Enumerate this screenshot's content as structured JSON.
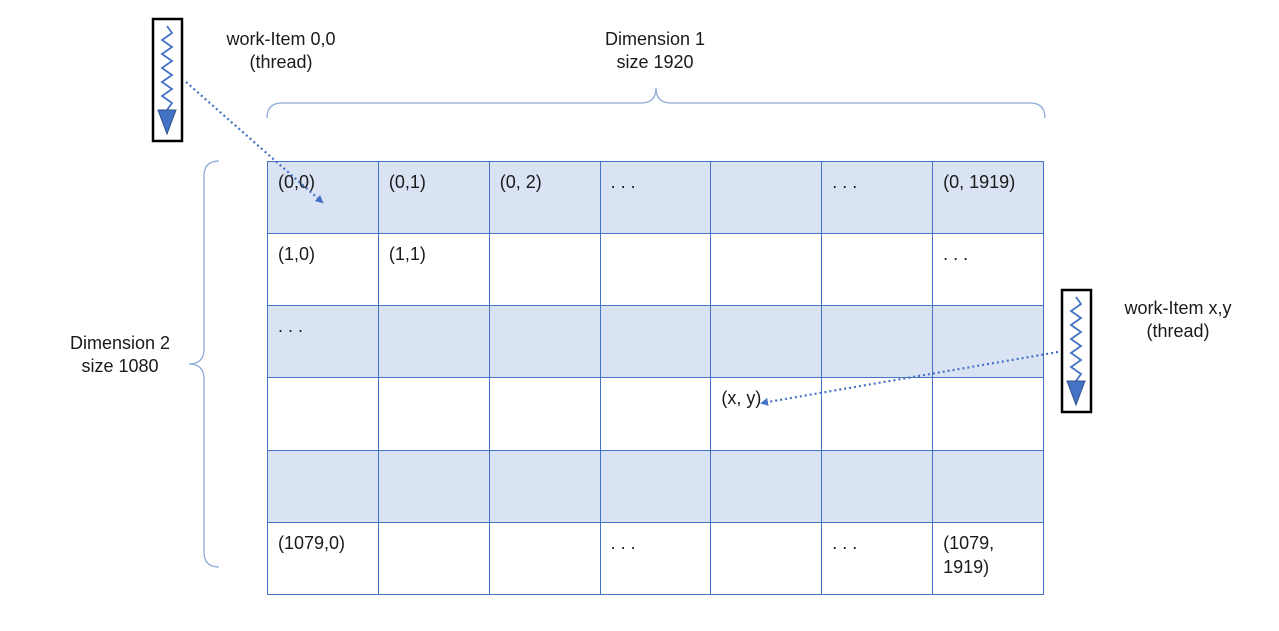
{
  "dimension1": {
    "line1": "Dimension 1",
    "line2": "size 1920"
  },
  "dimension2": {
    "line1": "Dimension 2",
    "line2": "size 1080"
  },
  "work_item_origin": {
    "line1": "work-Item 0,0",
    "line2": "(thread)",
    "icon": "thread-wave-arrow-icon"
  },
  "work_item_xy": {
    "line1": "work-Item x,y",
    "line2": "(thread)",
    "icon": "thread-wave-arrow-icon"
  },
  "colors": {
    "grid_line": "#4472c4",
    "shaded_row": "#dae3f3",
    "arrow": "#4472c4",
    "brace": "#8eaadb"
  },
  "grid": {
    "rows": [
      {
        "shaded": true,
        "cells": [
          "(0,0)",
          "(0,1)",
          "(0, 2)",
          ". . .",
          "",
          ". . .",
          "(0, 1919)"
        ]
      },
      {
        "shaded": false,
        "cells": [
          "(1,0)",
          "(1,1)",
          "",
          "",
          "",
          "",
          ". . ."
        ]
      },
      {
        "shaded": true,
        "cells": [
          ". . .",
          "",
          "",
          "",
          "",
          "",
          ""
        ]
      },
      {
        "shaded": false,
        "cells": [
          "",
          "",
          "",
          "",
          "(x, y)",
          "",
          ""
        ]
      },
      {
        "shaded": true,
        "cells": [
          "",
          "",
          "",
          "",
          "",
          "",
          ""
        ]
      },
      {
        "shaded": false,
        "cells": [
          "(1079,0)",
          "",
          "",
          ". . .",
          "",
          ". . .",
          "(1079,\n1919)"
        ]
      }
    ]
  }
}
